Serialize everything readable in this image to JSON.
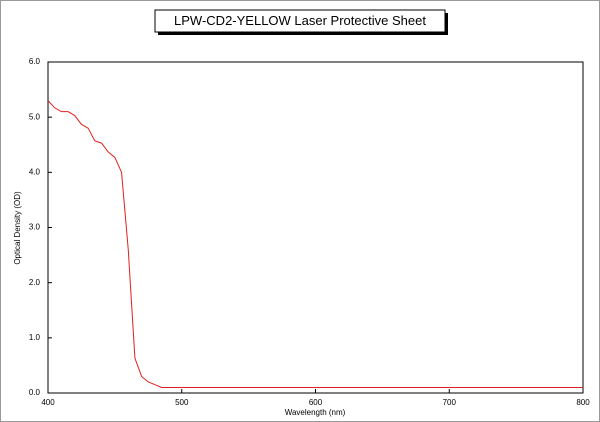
{
  "chart_data": {
    "type": "line",
    "title": "LPW-CD2-YELLOW Laser Protective Sheet",
    "x_label": "Wavelength (nm)",
    "y_label": "Optical Density (OD)",
    "x": [
      400,
      405,
      410,
      415,
      420,
      425,
      430,
      435,
      440,
      445,
      450,
      455,
      460,
      465,
      470,
      475,
      480,
      485,
      500,
      600,
      700,
      800
    ],
    "series": [
      {
        "color": "#e0201c",
        "values": [
          5.3,
          5.17,
          5.1,
          5.1,
          5.03,
          4.87,
          4.8,
          4.57,
          4.53,
          4.37,
          4.27,
          4.0,
          2.6,
          0.63,
          0.3,
          0.2,
          0.15,
          0.1,
          0.1,
          0.1,
          0.1,
          0.1
        ]
      }
    ],
    "xlim": [
      400,
      800
    ],
    "ylim": [
      0,
      6
    ],
    "xticks": [
      400,
      500,
      600,
      700,
      800
    ],
    "yticks": [
      {
        "value": 0,
        "label": "0.0"
      },
      {
        "value": 1,
        "label": "1.0"
      },
      {
        "value": 2,
        "label": "2.0"
      },
      {
        "value": 3,
        "label": "3.0"
      },
      {
        "value": 4,
        "label": "4.0"
      },
      {
        "value": 5,
        "label": "5.0"
      },
      {
        "value": 6,
        "label": "6.0"
      }
    ],
    "grid": false
  }
}
